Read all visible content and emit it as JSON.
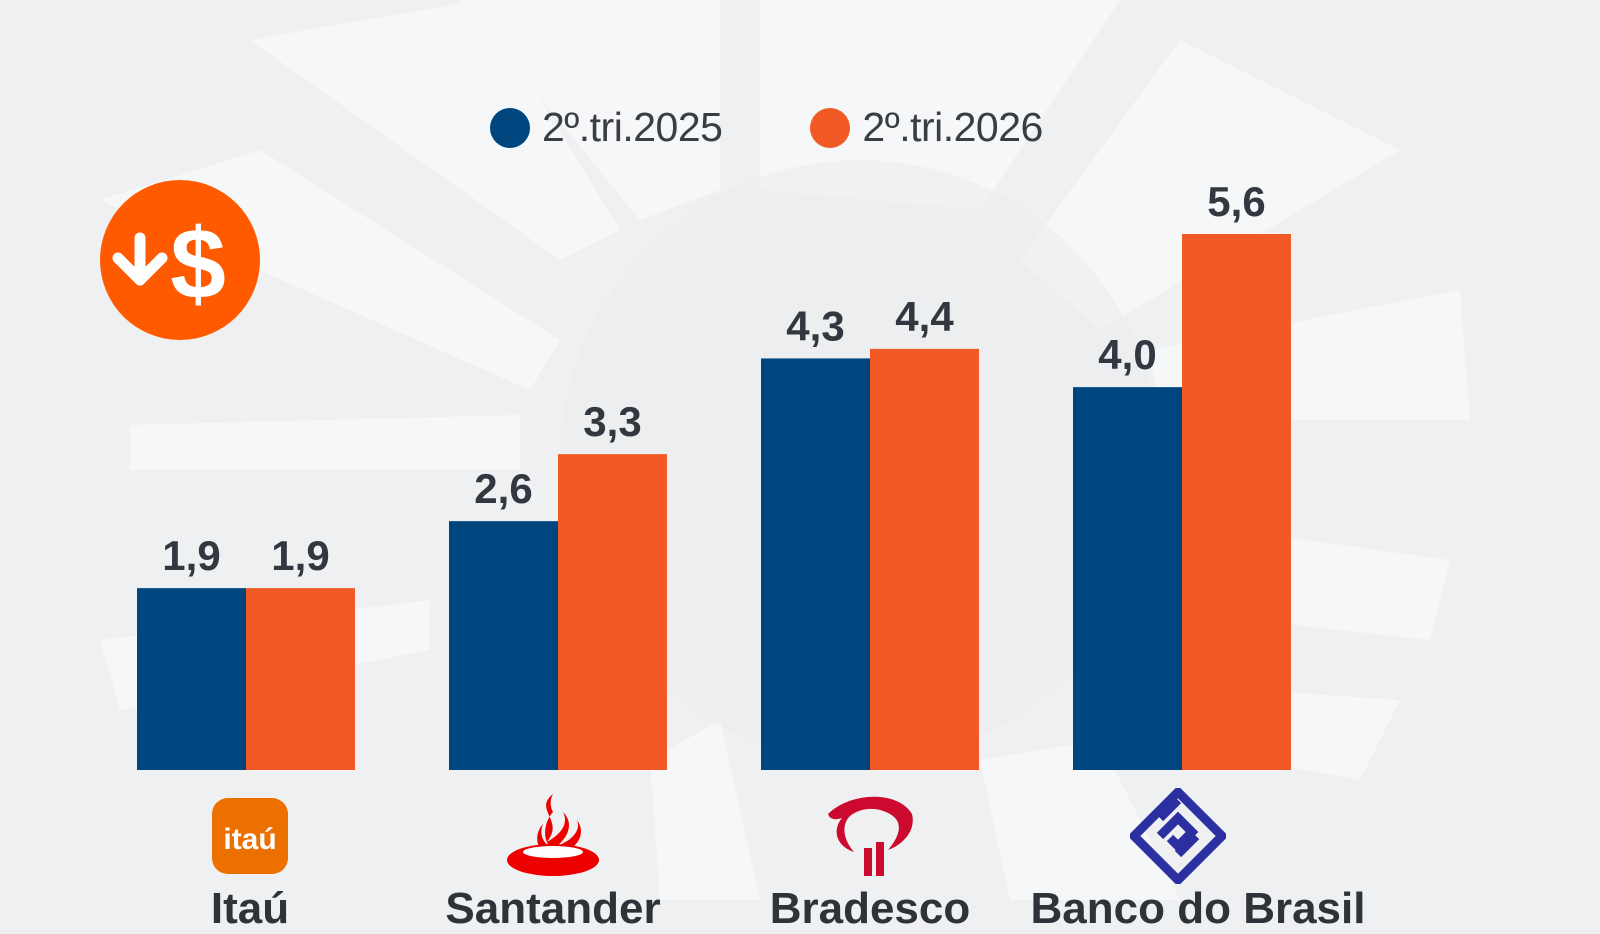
{
  "legend": {
    "series_a": "2º.tri.2025",
    "series_b": "2º.tri.2026"
  },
  "colors": {
    "series_a": "#00467e",
    "series_b": "#f15a24",
    "badge": "#ff5a00",
    "background": "#eef0f2"
  },
  "icons": {
    "badge": "money-down-icon",
    "banks": [
      "itau-logo",
      "santander-logo",
      "bradesco-logo",
      "banco-do-brasil-logo"
    ]
  },
  "banks": {
    "itau_logo_text": "itaú",
    "names": [
      "Itaú",
      "Santander",
      "Bradesco",
      "Banco do Brasil"
    ]
  },
  "chart_data": {
    "type": "bar",
    "categories": [
      "Itaú",
      "Santander",
      "Bradesco",
      "Banco do Brasil"
    ],
    "series": [
      {
        "name": "2º.tri.2025",
        "values": [
          1.9,
          2.6,
          4.3,
          4.0
        ],
        "labels": [
          "1,9",
          "2,6",
          "4,3",
          "4,0"
        ]
      },
      {
        "name": "2º.tri.2026",
        "values": [
          1.9,
          3.3,
          4.4,
          5.6
        ],
        "labels": [
          "1,9",
          "3,3",
          "4,4",
          "5,6"
        ]
      }
    ],
    "title": "",
    "xlabel": "",
    "ylabel": "",
    "ylim": [
      0,
      5.6
    ],
    "grid": false,
    "legend_position": "top"
  }
}
